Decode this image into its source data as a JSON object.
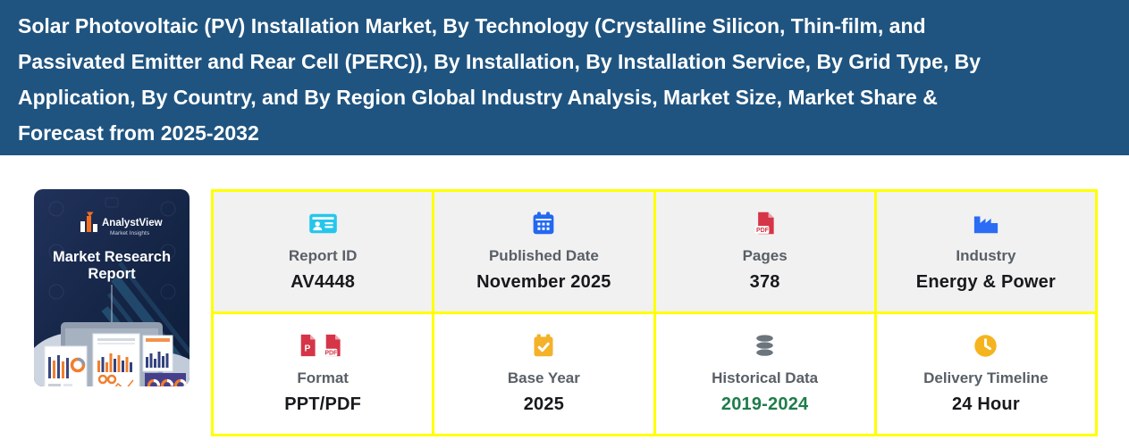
{
  "banner": {
    "bg_color": "#1f5480",
    "text_color": "#ffffff",
    "title_lines": [
      "Solar Photovoltaic (PV) Installation Market, By Technology (Crystalline Silicon, Thin-film, and",
      "Passivated Emitter and Rear Cell (PERC)), By Installation, By Installation Service, By Grid Type, By",
      "Application, By Country, and By Region Global Industry Analysis, Market Size, Market Share &",
      "Forecast from 2025-2032"
    ]
  },
  "thumbnail": {
    "brand_name": "AnalystView",
    "brand_tagline": "Market Insights",
    "cover_title_lines": [
      "Market Research",
      "Report"
    ]
  },
  "info_grid": {
    "border_color": "#ffff00",
    "row1_bg": "#f1f1f1",
    "row2_bg": "#ffffff",
    "cells": [
      {
        "icon": "id-card-icon",
        "icon_color": "#26c6ec",
        "label": "Report ID",
        "value": "AV4448",
        "value_color": "#17191c"
      },
      {
        "icon": "calendar-icon",
        "icon_color": "#2368f0",
        "label": "Published Date",
        "value": "November 2025",
        "value_color": "#17191c"
      },
      {
        "icon": "pdf-file-icon",
        "icon_color": "#d63447",
        "label": "Pages",
        "value": "378",
        "value_color": "#17191c"
      },
      {
        "icon": "factory-icon",
        "icon_color": "#2a6cf4",
        "label": "Industry",
        "value": "Energy & Power",
        "value_color": "#17191c"
      },
      {
        "icon": "ppt-pdf-file-icons",
        "icon_color": "#d63447",
        "label": "Format",
        "value": "PPT/PDF",
        "value_color": "#17191c"
      },
      {
        "icon": "calendar-check-icon",
        "icon_color": "#f3b229",
        "label": "Base Year",
        "value": "2025",
        "value_color": "#17191c"
      },
      {
        "icon": "database-icon",
        "icon_color": "#6c757d",
        "label": "Historical Data",
        "value": "2019-2024",
        "value_color": "#1e7d4a"
      },
      {
        "icon": "clock-icon",
        "icon_color": "#f5b41f",
        "label": "Delivery Timeline",
        "value": "24 Hour",
        "value_color": "#17191c"
      }
    ]
  }
}
